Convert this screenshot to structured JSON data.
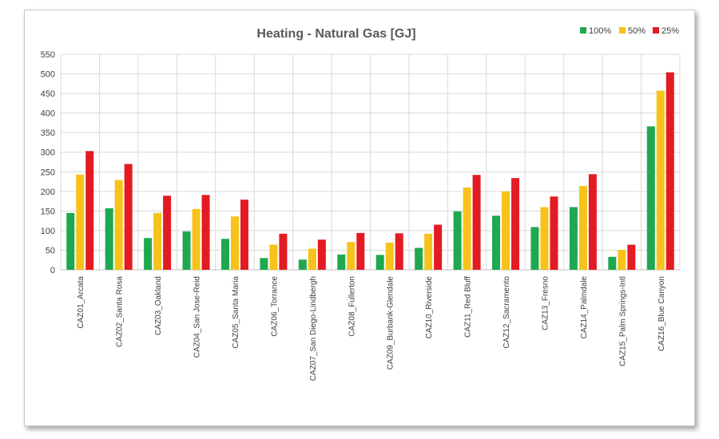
{
  "chart_data": {
    "type": "bar",
    "title": "Heating - Natural Gas [GJ]",
    "xlabel": "",
    "ylabel": "",
    "ylim": [
      0,
      550
    ],
    "yticks": [
      "0",
      "50",
      "100",
      "150",
      "200",
      "250",
      "300",
      "350",
      "400",
      "450",
      "500",
      "550"
    ],
    "grid": true,
    "legend_position": "top-right",
    "categories": [
      "CAZ01_Arcata",
      "CAZ02_Santa Rosa",
      "CAZ03_Oakland",
      "CAZ04_San Jose-Reid",
      "CAZ05_Santa Maria",
      "CAZ06_Torrance",
      "CAZ07_San Diego-Lindbergh",
      "CAZ08_Fullerton",
      "CAZ09_Burbank-Glendale",
      "CAZ10_Riverside",
      "CAZ11_Red Bluff",
      "CAZ12_Sacramento",
      "CAZ13_Fresno",
      "CAZ14_Palmdale",
      "CAZ15_Palm Springs-Intl",
      "CAZ16_Blue Canyon"
    ],
    "series": [
      {
        "name": "100%",
        "color": "#1fa84f",
        "values": [
          145,
          157,
          81,
          98,
          79,
          30,
          26,
          39,
          38,
          56,
          149,
          138,
          109,
          160,
          33,
          366
        ]
      },
      {
        "name": "50%",
        "color": "#f7c21a",
        "values": [
          243,
          229,
          145,
          155,
          136,
          64,
          54,
          71,
          69,
          92,
          210,
          200,
          160,
          214,
          51,
          457
        ]
      },
      {
        "name": "25%",
        "color": "#e31b23",
        "values": [
          303,
          270,
          189,
          191,
          179,
          92,
          77,
          94,
          93,
          115,
          242,
          234,
          187,
          244,
          64,
          504
        ]
      }
    ]
  }
}
